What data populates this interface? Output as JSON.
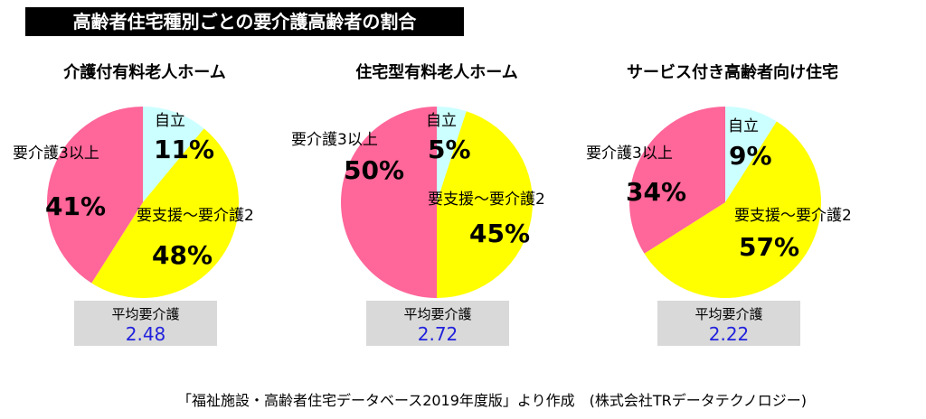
{
  "title": "高齢者住宅種別ごとの要介護高齢者の割合",
  "colors": {
    "independent": "#ccffff",
    "support_to_care2": "#ffff00",
    "care3_plus": "#ff6699"
  },
  "chart_data": [
    {
      "type": "pie",
      "title": "介護付有料老人ホーム",
      "slices": [
        {
          "label": "自立",
          "value": 11,
          "display": "11%",
          "color": "#ccffff"
        },
        {
          "label": "要支援～要介護2",
          "value": 48,
          "display": "48%",
          "color": "#ffff00"
        },
        {
          "label": "要介護3以上",
          "value": 41,
          "display": "41%",
          "color": "#ff6699"
        }
      ],
      "avg_label": "平均要介護",
      "avg_value": "2.48"
    },
    {
      "type": "pie",
      "title": "住宅型有料老人ホーム",
      "slices": [
        {
          "label": "自立",
          "value": 5,
          "display": "5%",
          "color": "#ccffff"
        },
        {
          "label": "要支援～要介護2",
          "value": 45,
          "display": "45%",
          "color": "#ffff00"
        },
        {
          "label": "要介護3以上",
          "value": 50,
          "display": "50%",
          "color": "#ff6699"
        }
      ],
      "avg_label": "平均要介護",
      "avg_value": "2.72"
    },
    {
      "type": "pie",
      "title": "サービス付き高齢者向け住宅",
      "slices": [
        {
          "label": "自立",
          "value": 9,
          "display": "9%",
          "color": "#ccffff"
        },
        {
          "label": "要支援～要介護2",
          "value": 57,
          "display": "57%",
          "color": "#ffff00"
        },
        {
          "label": "要介護3以上",
          "value": 34,
          "display": "34%",
          "color": "#ff6699"
        }
      ],
      "avg_label": "平均要介護",
      "avg_value": "2.22"
    }
  ],
  "source": "「福祉施設・高齢者住宅データベース2019年度版」より作成　(株式会社TRデータテクノロジー)"
}
